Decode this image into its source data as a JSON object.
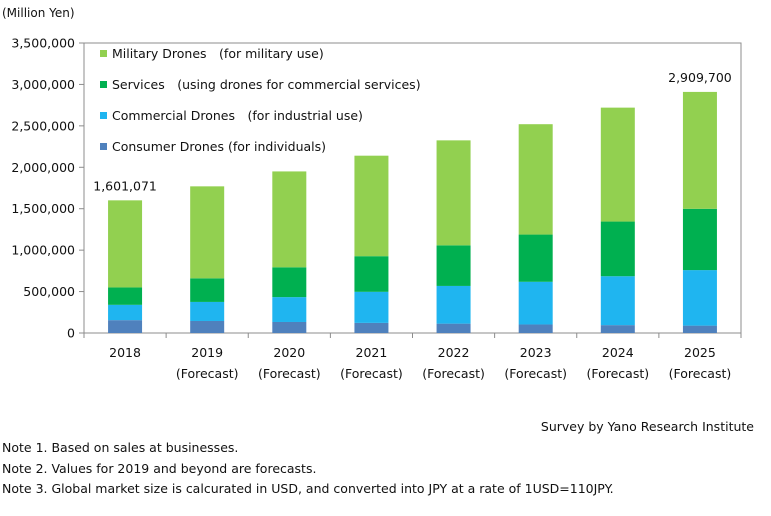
{
  "chart_data": {
    "type": "bar",
    "stacked": true,
    "unit_label": "(Million Yen)",
    "categories": [
      [
        "2018"
      ],
      [
        "2019",
        "(Forecast)"
      ],
      [
        "2020",
        "(Forecast)"
      ],
      [
        "2021",
        "(Forecast)"
      ],
      [
        "2022",
        "(Forecast)"
      ],
      [
        "2023",
        "(Forecast)"
      ],
      [
        "2024",
        "(Forecast)"
      ],
      [
        "2025",
        "(Forecast)"
      ]
    ],
    "series": [
      {
        "name": "Consumer Drones (for individuals)",
        "color": "#4f81bd",
        "values": [
          155000,
          145000,
          133000,
          122000,
          113000,
          103000,
          95000,
          89000
        ]
      },
      {
        "name": "Commercial Drones　(for industrial use)",
        "color": "#1fb5f0",
        "values": [
          185000,
          230000,
          300000,
          375000,
          455000,
          515000,
          590000,
          670000
        ]
      },
      {
        "name": "Services　(using drones for commercial services)",
        "color": "#00b050",
        "values": [
          210000,
          285000,
          360000,
          430000,
          490000,
          570000,
          660000,
          740000
        ]
      },
      {
        "name": "Military Drones　(for military use)",
        "color": "#92d050",
        "values": [
          1051071,
          1110000,
          1157000,
          1213000,
          1267000,
          1332000,
          1375000,
          1410700
        ]
      }
    ],
    "legend_order": [
      3,
      2,
      1,
      0
    ],
    "data_labels": [
      {
        "category_index": 0,
        "text": "1,601,071"
      },
      {
        "category_index": 7,
        "text": "2,909,700"
      }
    ],
    "y_ticks": [
      0,
      500000,
      1000000,
      1500000,
      2000000,
      2500000,
      3000000,
      3500000
    ],
    "y_tick_labels": [
      "0",
      "500,000",
      "1,000,000",
      "1,500,000",
      "2,000,000",
      "2,500,000",
      "3,000,000",
      "3,500,000"
    ],
    "ylim": [
      0,
      3500000
    ],
    "grid": false,
    "legend_position": "top-left"
  },
  "credit": "Survey by Yano Research Institute",
  "notes": [
    "Note 1. Based on sales at businesses.",
    "Note 2. Values for 2019 and beyond are forecasts.",
    "Note 3. Global market size is calcurated in USD, and converted into JPY at a rate of 1USD=110JPY."
  ]
}
